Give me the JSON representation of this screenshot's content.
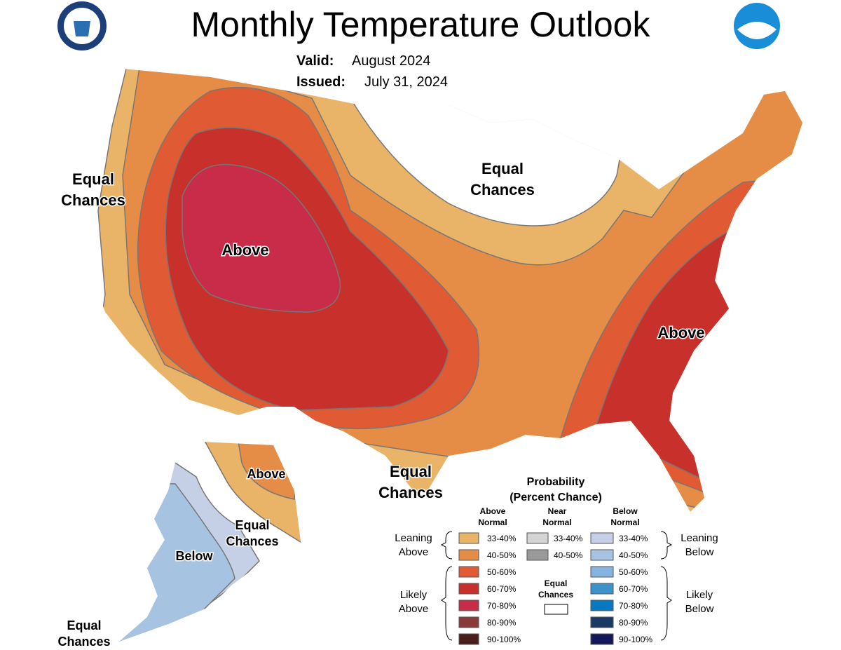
{
  "header": {
    "title": "Monthly Temperature Outlook",
    "valid_label": "Valid:",
    "valid_value": "August 2024",
    "issued_label": "Issued:",
    "issued_value": "July 31, 2024"
  },
  "map_labels": [
    {
      "lines": [
        "Equal",
        "Chances"
      ]
    },
    {
      "lines": [
        "Equal",
        "Chances"
      ]
    },
    {
      "lines": [
        "Above"
      ]
    },
    {
      "lines": [
        "Above"
      ]
    },
    {
      "lines": [
        "Equal",
        "Chances"
      ]
    },
    {
      "lines": [
        "Above"
      ]
    },
    {
      "lines": [
        "Equal",
        "Chances"
      ]
    },
    {
      "lines": [
        "Below"
      ]
    },
    {
      "lines": [
        "Equal",
        "Chances"
      ]
    }
  ],
  "legend": {
    "title": [
      "Probability",
      "(Percent Chance)"
    ],
    "columns": [
      {
        "title": [
          "Above",
          "Normal"
        ],
        "entries": [
          {
            "label": "33-40%",
            "color": "#e9b467"
          },
          {
            "label": "40-50%",
            "color": "#e58c47"
          },
          {
            "label": "50-60%",
            "color": "#e05a33"
          },
          {
            "label": "60-70%",
            "color": "#c8302b"
          },
          {
            "label": "70-80%",
            "color": "#c92c48"
          },
          {
            "label": "80-90%",
            "color": "#8b3a3a"
          },
          {
            "label": "90-100%",
            "color": "#4b1e1a"
          }
        ]
      },
      {
        "title": [
          "Near",
          "Normal"
        ],
        "entries": [
          {
            "label": "33-40%",
            "color": "#d4d4d4"
          },
          {
            "label": "40-50%",
            "color": "#9a9a9a"
          }
        ]
      },
      {
        "title": [
          "Below",
          "Normal"
        ],
        "entries": [
          {
            "label": "33-40%",
            "color": "#c5cfe6"
          },
          {
            "label": "40-50%",
            "color": "#a6c3e2"
          },
          {
            "label": "50-60%",
            "color": "#85b5de"
          },
          {
            "label": "60-70%",
            "color": "#3b93c9"
          },
          {
            "label": "70-80%",
            "color": "#0978c3"
          },
          {
            "label": "80-90%",
            "color": "#1a3a66"
          },
          {
            "label": "90-100%",
            "color": "#14185a"
          }
        ]
      }
    ],
    "equal_chances": [
      "Equal",
      "Chances"
    ],
    "groups": [
      {
        "lines": [
          "Leaning",
          "Above"
        ]
      },
      {
        "lines": [
          "Likely",
          "Above"
        ]
      },
      {
        "lines": [
          "Leaning",
          "Below"
        ]
      },
      {
        "lines": [
          "Likely",
          "Below"
        ]
      }
    ]
  }
}
